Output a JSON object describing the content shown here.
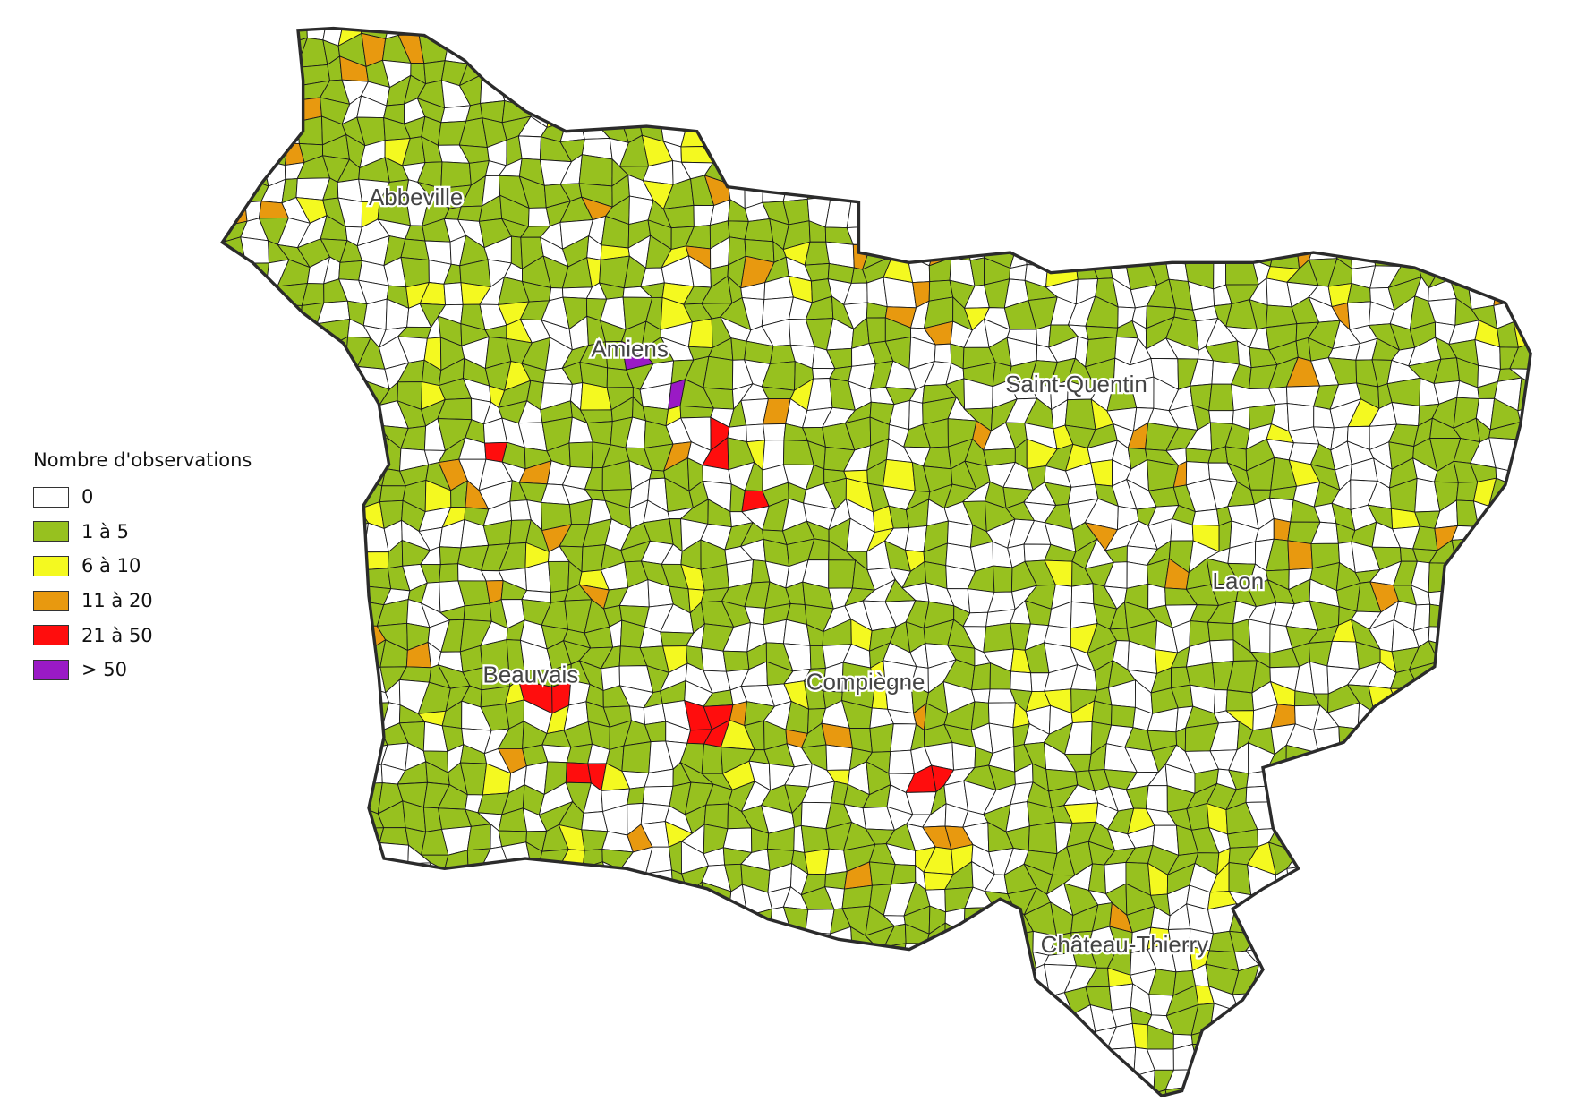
{
  "legend": {
    "title": "Nombre d'observations",
    "classes": [
      {
        "label": "0",
        "color": "#ffffff"
      },
      {
        "label": "1 à 5",
        "color": "#97c11f"
      },
      {
        "label": "6 à 10",
        "color": "#f4f920"
      },
      {
        "label": "11 à 20",
        "color": "#e8990f"
      },
      {
        "label": "21 à 50",
        "color": "#ff0d0d"
      },
      {
        "label": "> 50",
        "color": "#9a1ac5"
      }
    ]
  },
  "cities": [
    {
      "name": "Abbeville"
    },
    {
      "name": "Amiens"
    },
    {
      "name": "Saint-Quentin"
    },
    {
      "name": "Laon"
    },
    {
      "name": "Beauvais"
    },
    {
      "name": "Compiègne"
    },
    {
      "name": "Château-Thierry"
    }
  ],
  "colors": {
    "outline": "#2b2b2b",
    "cell_border": "#1a1a1a"
  }
}
